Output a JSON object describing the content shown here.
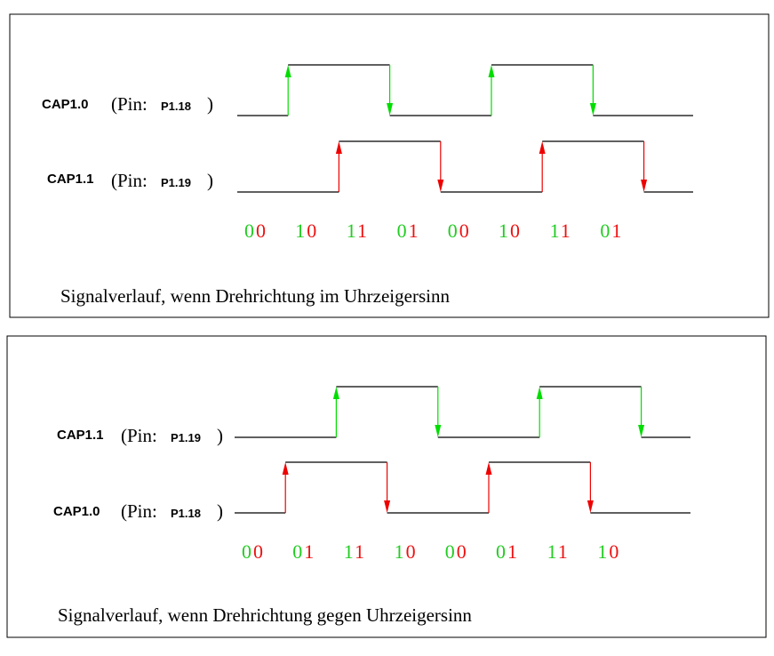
{
  "colors": {
    "rise_first": "#00dd00",
    "rise_second": "#ee0000",
    "high": "#22cc22",
    "low": "#ee1111",
    "wave": "#000000",
    "frame": "#000000"
  },
  "panels": [
    {
      "caption": "Signalverlauf, wenn Drehrichtung im Uhrzeigersinn",
      "pin_prefix": "(Pin:",
      "pin_suffix": ")",
      "signals": [
        {
          "name": "CAP1.0",
          "pin": "P1.18",
          "color": "green",
          "edges": [
            {
              "x": 1,
              "dir": "up"
            },
            {
              "x": 3,
              "dir": "down"
            },
            {
              "x": 5,
              "dir": "up"
            },
            {
              "x": 7,
              "dir": "down"
            }
          ]
        },
        {
          "name": "CAP1.1",
          "pin": "P1.19",
          "color": "red",
          "edges": [
            {
              "x": 2,
              "dir": "up"
            },
            {
              "x": 4,
              "dir": "down"
            },
            {
              "x": 6,
              "dir": "up"
            },
            {
              "x": 8,
              "dir": "down"
            }
          ]
        }
      ],
      "states": [
        "00",
        "10",
        "11",
        "01",
        "00",
        "10",
        "11",
        "01"
      ]
    },
    {
      "caption": "Signalverlauf, wenn Drehrichtung gegen Uhrzeigersinn",
      "pin_prefix": "(Pin:",
      "pin_suffix": ")",
      "signals": [
        {
          "name": "CAP1.1",
          "pin": "P1.19",
          "color": "green",
          "edges": [
            {
              "x": 2,
              "dir": "up"
            },
            {
              "x": 4,
              "dir": "down"
            },
            {
              "x": 6,
              "dir": "up"
            },
            {
              "x": 8,
              "dir": "down"
            }
          ]
        },
        {
          "name": "CAP1.0",
          "pin": "P1.18",
          "color": "red",
          "edges": [
            {
              "x": 1,
              "dir": "up"
            },
            {
              "x": 3,
              "dir": "down"
            },
            {
              "x": 5,
              "dir": "up"
            },
            {
              "x": 7,
              "dir": "down"
            }
          ]
        }
      ],
      "states": [
        "00",
        "01",
        "11",
        "10",
        "00",
        "01",
        "11",
        "10"
      ]
    }
  ]
}
